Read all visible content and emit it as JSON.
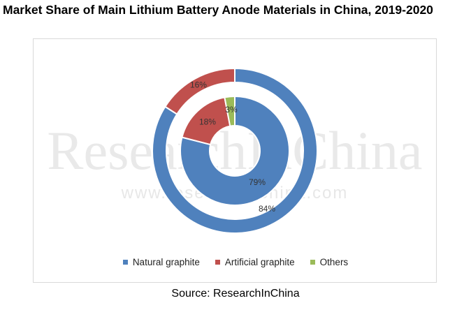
{
  "title": "Market Share of Main Lithium Battery Anode Materials in China, 2019-2020",
  "source": "Source: ResearchInChina",
  "watermark": {
    "brand": "ResearchInChina",
    "url": "www.researchinchina.com"
  },
  "chart_data": {
    "type": "pie",
    "variant": "doughnut",
    "categories": [
      "Natural graphite",
      "Artificial graphite",
      "Others"
    ],
    "colors": [
      "#4f81bd",
      "#c0504d",
      "#9bbb59"
    ],
    "rings": [
      {
        "ring": "outer",
        "values": [
          84,
          16,
          0
        ],
        "labels": [
          "84%",
          "16%",
          ""
        ]
      },
      {
        "ring": "inner",
        "values": [
          79,
          18,
          3
        ],
        "labels": [
          "79%",
          "18%",
          "3%"
        ]
      }
    ],
    "legend_position": "bottom"
  }
}
